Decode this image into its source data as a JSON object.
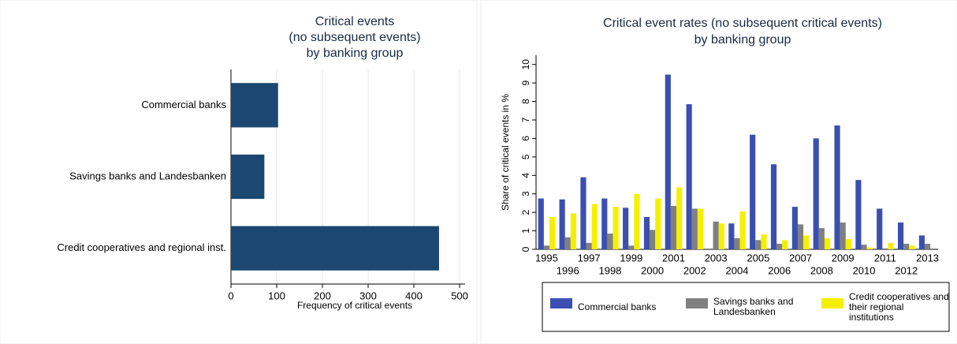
{
  "chart_data": [
    {
      "type": "hbar",
      "title": [
        "Critical events",
        "(no subsequent events)",
        "by banking group"
      ],
      "x_label": "Frequency of critical events",
      "categories": [
        "Commercial banks",
        "Savings banks and Landesbanken",
        "Credit cooperatives and regional inst."
      ],
      "values": [
        103,
        73,
        455
      ],
      "color": "#1b4770",
      "xlim": [
        0,
        512
      ],
      "xticks": [
        0,
        100,
        200,
        300,
        400,
        500
      ],
      "grid": true
    },
    {
      "type": "grouped_bar",
      "title": [
        "Critical event rates (no subsequent critical events)",
        "by banking group"
      ],
      "y_label": "Share of critical events in %",
      "categories": [
        "1995",
        "1996",
        "1997",
        "1998",
        "1999",
        "2000",
        "2001",
        "2002",
        "2003",
        "2004",
        "2005",
        "2006",
        "2007",
        "2008",
        "2009",
        "2010",
        "2011",
        "2012",
        "2013"
      ],
      "series": [
        {
          "name": "Commercial banks",
          "color": "#3a4fb0",
          "values": [
            2.75,
            2.7,
            3.9,
            2.75,
            2.25,
            1.75,
            9.45,
            7.85,
            0,
            1.4,
            6.2,
            4.6,
            2.3,
            6.0,
            6.7,
            3.75,
            2.2,
            1.45,
            0.75
          ]
        },
        {
          "name": "Savings banks and Landesbanken",
          "color": "#808080",
          "values": [
            0.2,
            0.65,
            0.35,
            0.85,
            0.2,
            1.05,
            2.35,
            2.2,
            1.5,
            0.6,
            0.5,
            0.3,
            1.35,
            1.15,
            1.45,
            0.25,
            0.05,
            0.3,
            0.3
          ]
        },
        {
          "name": "Credit cooperatives and their regional institutions",
          "color": "#f5f000",
          "values": [
            1.75,
            1.95,
            2.45,
            2.3,
            3.0,
            2.75,
            3.35,
            2.2,
            1.4,
            2.05,
            0.8,
            0.5,
            0.75,
            0.6,
            0.55,
            0.1,
            0.35,
            0.2,
            0
          ]
        }
      ],
      "ylim": [
        0,
        10.5
      ],
      "yticks": [
        0,
        1,
        2,
        3,
        4,
        5,
        6,
        7,
        8,
        9,
        10
      ],
      "grid": false,
      "legend": "bottom"
    }
  ]
}
